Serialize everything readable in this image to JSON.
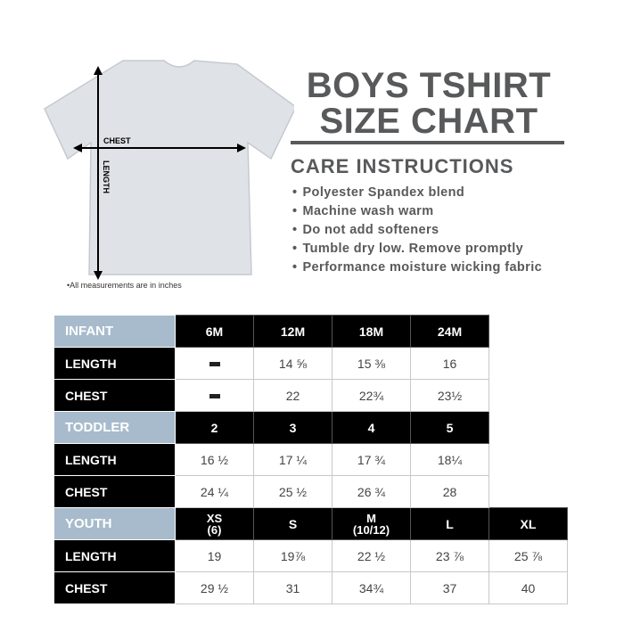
{
  "title_lines": [
    "BOYS TSHIRT",
    "SIZE CHART"
  ],
  "care_heading": "CARE INSTRUCTIONS",
  "care_items": [
    "Polyester Spandex blend",
    "Machine wash warm",
    "Do not add softeners",
    "Tumble dry low. Remove promptly",
    "Performance moisture wicking fabric"
  ],
  "diagram": {
    "chest_label": "CHEST",
    "length_label": "LENGTH",
    "shirt_color": "#dfe3e8"
  },
  "note": "•All measurements are in inches",
  "groups": [
    {
      "name": "INFANT",
      "sizes": [
        "6M",
        "12M",
        "18M",
        "24M"
      ],
      "rows": [
        {
          "label": "LENGTH",
          "values": [
            "–",
            "14 ⅝",
            "15 ⅜",
            "16"
          ]
        },
        {
          "label": "CHEST",
          "values": [
            "–",
            "22",
            "22¾",
            "23½"
          ]
        }
      ]
    },
    {
      "name": "TODDLER",
      "sizes": [
        "2",
        "3",
        "4",
        "5"
      ],
      "rows": [
        {
          "label": "LENGTH",
          "values": [
            "16 ½",
            "17 ¼",
            "17 ¾",
            "18¼"
          ]
        },
        {
          "label": "CHEST",
          "values": [
            "24 ¼",
            "25 ½",
            "26 ¾",
            "28"
          ]
        }
      ]
    },
    {
      "name": "YOUTH",
      "sizes": [
        "XS\n(6)",
        "S",
        "M\n(10/12)",
        "L",
        "XL"
      ],
      "rows": [
        {
          "label": "LENGTH",
          "values": [
            "19",
            "19⅞",
            "22 ½",
            "23 ⅞",
            "25 ⅞"
          ]
        },
        {
          "label": "CHEST",
          "values": [
            "29 ½",
            "31",
            "34¾",
            "37",
            "40"
          ]
        }
      ]
    }
  ],
  "colors": {
    "group_header": "#a7bbcc",
    "heading_text": "#58595b"
  }
}
